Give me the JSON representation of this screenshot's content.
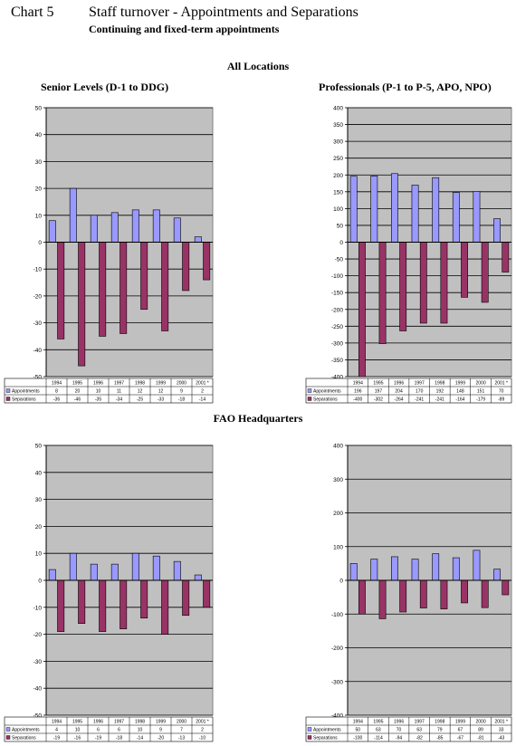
{
  "header": {
    "chart_label": "Chart 5",
    "title": "Staff turnover - Appointments and Separations",
    "subtitle": "Continuing and fixed-term appointments"
  },
  "sections": {
    "all_locations": "All Locations",
    "headquarters": "FAO Headquarters"
  },
  "colors": {
    "appointments": "#9999ff",
    "separations": "#993366",
    "plot_bg": "#c0c0c0"
  },
  "chart_data": [
    {
      "type": "bar",
      "title": "Senior Levels (D-1 to DDG)",
      "categories": [
        "1994",
        "1995",
        "1996",
        "1997",
        "1998",
        "1999",
        "2000",
        "2001 *"
      ],
      "series": [
        {
          "name": "Appointments",
          "values": [
            8,
            20,
            10,
            11,
            12,
            12,
            9,
            2
          ],
          "labels": [
            "8",
            "20",
            "10",
            "11",
            "12",
            "12",
            "9",
            "2"
          ]
        },
        {
          "name": "Separations",
          "values": [
            -36,
            -46,
            -35,
            -34,
            -25,
            -33,
            -18,
            -14
          ],
          "labels": [
            "-36",
            "-46",
            "-35",
            "-34",
            "-25",
            "-33",
            "-18",
            "-14"
          ]
        }
      ],
      "ylim": [
        -50,
        50
      ],
      "yticks": [
        50,
        40,
        30,
        20,
        10,
        0,
        -10,
        -20,
        -30,
        -40,
        -50
      ],
      "grid": true
    },
    {
      "type": "bar",
      "title": "Professionals (P-1 to P-5, APO, NPO)",
      "categories": [
        "1994",
        "1995",
        "1996",
        "1997",
        "1998",
        "1999",
        "2000",
        "2001 *"
      ],
      "series": [
        {
          "name": "Appointments",
          "values": [
            196,
            197,
            204,
            170,
            192,
            148,
            151,
            70
          ],
          "labels": [
            "196",
            "197",
            "204",
            "170",
            "192",
            "148",
            "151",
            "70"
          ]
        },
        {
          "name": "Separations",
          "values": [
            -400,
            -302,
            -264,
            -241,
            -241,
            -164,
            -179,
            -89
          ],
          "labels": [
            "-400",
            "-302",
            "-264",
            "-241",
            "-241",
            "-164",
            "-179",
            "-89"
          ]
        }
      ],
      "ylim": [
        -400,
        400
      ],
      "yticks": [
        400,
        350,
        300,
        250,
        200,
        150,
        100,
        50,
        0,
        -50,
        -100,
        -150,
        -200,
        -250,
        -300,
        -350,
        -400
      ],
      "grid": true
    },
    {
      "type": "bar",
      "title": "",
      "categories": [
        "1994",
        "1995",
        "1996",
        "1997",
        "1998",
        "1999",
        "2000",
        "2001 *"
      ],
      "series": [
        {
          "name": "Appointments",
          "values": [
            4,
            10,
            6,
            6,
            10,
            9,
            7,
            2
          ],
          "labels": [
            "4",
            "10",
            "6",
            "6",
            "10",
            "9",
            "7",
            "2"
          ]
        },
        {
          "name": "Separations",
          "values": [
            -19,
            -16,
            -19,
            -18,
            -14,
            -20,
            -13,
            -10
          ],
          "labels": [
            "-19",
            "-16",
            "-19",
            "-18",
            "-14",
            "-20",
            "-13",
            "-10"
          ]
        }
      ],
      "ylim": [
        -50,
        50
      ],
      "yticks": [
        50,
        40,
        30,
        20,
        10,
        0,
        -10,
        -20,
        -30,
        -40,
        -50
      ],
      "grid": true
    },
    {
      "type": "bar",
      "title": "",
      "categories": [
        "1994",
        "1995",
        "1996",
        "1997",
        "1998",
        "1999",
        "2000",
        "2001 *"
      ],
      "series": [
        {
          "name": "Appointments",
          "values": [
            50,
            63,
            70,
            63,
            79,
            67,
            89,
            33
          ],
          "labels": [
            "50",
            "63",
            "70",
            "63",
            "79",
            "67",
            "89",
            "33"
          ]
        },
        {
          "name": "Separations",
          "values": [
            -100,
            -114,
            -94,
            -82,
            -85,
            -67,
            -81,
            -43
          ],
          "labels": [
            "-100",
            "-114",
            "-94",
            "-82",
            "-85",
            "-67",
            "-81",
            "-43"
          ]
        }
      ],
      "ylim": [
        -400,
        400
      ],
      "yticks": [
        400,
        300,
        200,
        100,
        0,
        -100,
        -200,
        -300,
        -400
      ],
      "grid": true
    }
  ]
}
